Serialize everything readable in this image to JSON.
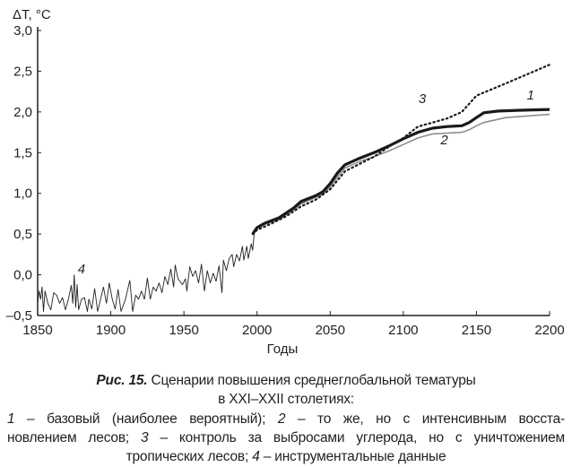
{
  "chart_data": {
    "type": "line",
    "ylabel": "ΔT, °C",
    "xlabel": "Годы",
    "xlim": [
      1850,
      2200
    ],
    "ylim": [
      -0.5,
      3.0
    ],
    "xticks": [
      1850,
      1900,
      1950,
      2000,
      2050,
      2100,
      2150,
      2200
    ],
    "xtick_labels": [
      "1850",
      "1900",
      "1950",
      "2000",
      "2050",
      "2100",
      "2150",
      "2200"
    ],
    "yticks": [
      -0.5,
      0.0,
      0.5,
      1.0,
      1.5,
      2.0,
      2.5,
      3.0
    ],
    "ytick_labels": [
      "–0,5",
      "0,0",
      "0,5",
      "1,0",
      "1,5",
      "2,0",
      "2,5",
      "3,0"
    ],
    "grid": false,
    "series": [
      {
        "name": "1",
        "style": "thick-solid",
        "color": "#1a1a1a",
        "x": [
          1997,
          2000,
          2005,
          2015,
          2025,
          2030,
          2040,
          2045,
          2050,
          2055,
          2060,
          2070,
          2080,
          2090,
          2100,
          2110,
          2120,
          2130,
          2140,
          2145,
          2150,
          2155,
          2165,
          2180,
          2200
        ],
        "y": [
          0.5,
          0.58,
          0.63,
          0.7,
          0.82,
          0.9,
          0.97,
          1.02,
          1.12,
          1.25,
          1.35,
          1.43,
          1.5,
          1.58,
          1.67,
          1.75,
          1.8,
          1.82,
          1.83,
          1.87,
          1.93,
          1.99,
          2.01,
          2.02,
          2.03
        ]
      },
      {
        "name": "2",
        "style": "thin-solid",
        "color": "#8c8c8c",
        "x": [
          1997,
          2000,
          2005,
          2015,
          2025,
          2030,
          2040,
          2045,
          2050,
          2055,
          2060,
          2070,
          2080,
          2090,
          2100,
          2110,
          2120,
          2130,
          2140,
          2145,
          2150,
          2155,
          2170,
          2200
        ],
        "y": [
          0.5,
          0.57,
          0.62,
          0.68,
          0.8,
          0.87,
          0.95,
          0.99,
          1.08,
          1.2,
          1.31,
          1.39,
          1.45,
          1.52,
          1.6,
          1.68,
          1.73,
          1.74,
          1.75,
          1.78,
          1.83,
          1.87,
          1.93,
          1.97
        ]
      },
      {
        "name": "3",
        "style": "dotted",
        "color": "#1a1a1a",
        "x": [
          1997,
          2000,
          2010,
          2020,
          2030,
          2040,
          2050,
          2060,
          2070,
          2080,
          2090,
          2100,
          2110,
          2120,
          2130,
          2140,
          2145,
          2150,
          2170,
          2200
        ],
        "y": [
          0.5,
          0.55,
          0.63,
          0.72,
          0.84,
          0.92,
          1.05,
          1.27,
          1.36,
          1.45,
          1.57,
          1.68,
          1.82,
          1.87,
          1.92,
          2.0,
          2.1,
          2.2,
          2.35,
          2.58
        ]
      },
      {
        "name": "4",
        "style": "thin-noisy",
        "color": "#231f20",
        "x": [
          1850,
          1851,
          1852,
          1853,
          1854,
          1855,
          1857,
          1859,
          1861,
          1863,
          1865,
          1867,
          1869,
          1871,
          1873,
          1874,
          1875,
          1876,
          1877,
          1878,
          1880,
          1882,
          1884,
          1885,
          1887,
          1889,
          1891,
          1893,
          1895,
          1897,
          1899,
          1901,
          1903,
          1905,
          1907,
          1910,
          1913,
          1915,
          1917,
          1919,
          1921,
          1923,
          1925,
          1927,
          1929,
          1931,
          1933,
          1935,
          1937,
          1939,
          1941,
          1943,
          1944,
          1946,
          1949,
          1951,
          1952,
          1954,
          1956,
          1958,
          1960,
          1962,
          1964,
          1966,
          1968,
          1970,
          1972,
          1974,
          1976,
          1977,
          1979,
          1981,
          1983,
          1984,
          1986,
          1988,
          1990,
          1991,
          1993,
          1994,
          1996,
          1997,
          1998
        ],
        "y": [
          -0.35,
          -0.2,
          -0.3,
          -0.15,
          -0.45,
          -0.2,
          -0.35,
          -0.43,
          -0.22,
          -0.25,
          -0.35,
          -0.28,
          -0.43,
          -0.3,
          -0.13,
          -0.35,
          0.0,
          -0.4,
          -0.12,
          -0.43,
          -0.3,
          -0.28,
          -0.45,
          -0.3,
          -0.42,
          -0.17,
          -0.45,
          -0.3,
          -0.15,
          -0.35,
          -0.1,
          -0.3,
          -0.42,
          -0.18,
          -0.45,
          -0.3,
          -0.07,
          -0.45,
          -0.25,
          -0.3,
          -0.2,
          -0.3,
          -0.04,
          -0.3,
          -0.15,
          -0.2,
          -0.1,
          -0.22,
          -0.02,
          -0.12,
          0.07,
          -0.15,
          0.12,
          -0.05,
          -0.12,
          -0.05,
          -0.2,
          0.1,
          -0.02,
          0.05,
          -0.1,
          0.13,
          -0.2,
          0.05,
          -0.1,
          0.02,
          -0.08,
          0.11,
          -0.22,
          0.18,
          0.05,
          0.2,
          0.25,
          0.1,
          0.25,
          0.17,
          0.35,
          0.18,
          0.35,
          0.2,
          0.38,
          0.3,
          0.5
        ]
      }
    ],
    "annotations": [
      {
        "text": "1",
        "x": 2187,
        "y": 2.15
      },
      {
        "text": "2",
        "x": 2128,
        "y": 1.6
      },
      {
        "text": "3",
        "x": 2113,
        "y": 2.11
      },
      {
        "text": "4",
        "x": 1880,
        "y": 0.02
      }
    ]
  },
  "caption": {
    "fig_label": "Рис. 15.",
    "title_line1": "Сценарии повышения среднеглобальной тематуры",
    "title_line2": "в XXI–XXII столетиях:",
    "items": [
      {
        "num": "1",
        "text": " – базовый (наиболее вероятный); "
      },
      {
        "num": "2",
        "text": " – то же, но с интенсивным восста-"
      },
      {
        "num": "",
        "text": "новлением лесов; "
      },
      {
        "num": "3",
        "text": " – контроль за выбросами углерода, но с уничтожением"
      },
      {
        "num": "",
        "text": "тропических лесов; "
      },
      {
        "num": "4",
        "text": " – инструментальные данные"
      }
    ]
  }
}
